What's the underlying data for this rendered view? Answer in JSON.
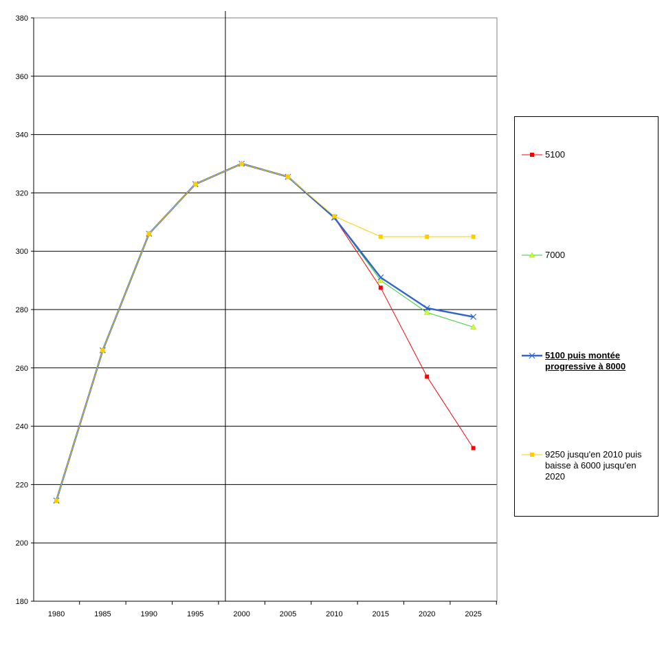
{
  "chart_data": {
    "type": "line",
    "x": [
      1980,
      1985,
      1990,
      1995,
      2000,
      2005,
      2010,
      2015,
      2020,
      2025
    ],
    "xticks": [
      "1980",
      "1985",
      "1990",
      "1995",
      "2000",
      "2005",
      "2010",
      "2015",
      "2020",
      "2025"
    ],
    "yticks": [
      "180",
      "200",
      "220",
      "240",
      "260",
      "280",
      "300",
      "320",
      "340",
      "360",
      "380"
    ],
    "ylim": [
      180,
      380
    ],
    "grid": "horizontal",
    "legend_position": "right",
    "series": [
      {
        "name": "5100",
        "color": "#ff0000",
        "marker": "square",
        "bold": false,
        "values": [
          214.5,
          266,
          306,
          323,
          330,
          325.5,
          311.5,
          287.5,
          257,
          232.5
        ]
      },
      {
        "name": "7000",
        "color": "#33cc33",
        "marker": "triangle",
        "bold": false,
        "values": [
          214.5,
          266,
          306,
          323,
          330,
          325.5,
          311.5,
          290,
          279,
          274
        ]
      },
      {
        "name": "5100 puis montée progressive à 8000",
        "color": "#3366cc",
        "marker": "x",
        "bold": true,
        "values": [
          214.5,
          266,
          306,
          323,
          330,
          325.5,
          311.5,
          291,
          280.5,
          277.5
        ]
      },
      {
        "name": "9250 jusqu'en 2010 puis baisse à 6000 jusqu'en 2020",
        "color": "#ffcc00",
        "marker": "square",
        "bold": false,
        "values": [
          214.5,
          266,
          306,
          323,
          330,
          325.5,
          312,
          305,
          305,
          305
        ]
      }
    ]
  }
}
